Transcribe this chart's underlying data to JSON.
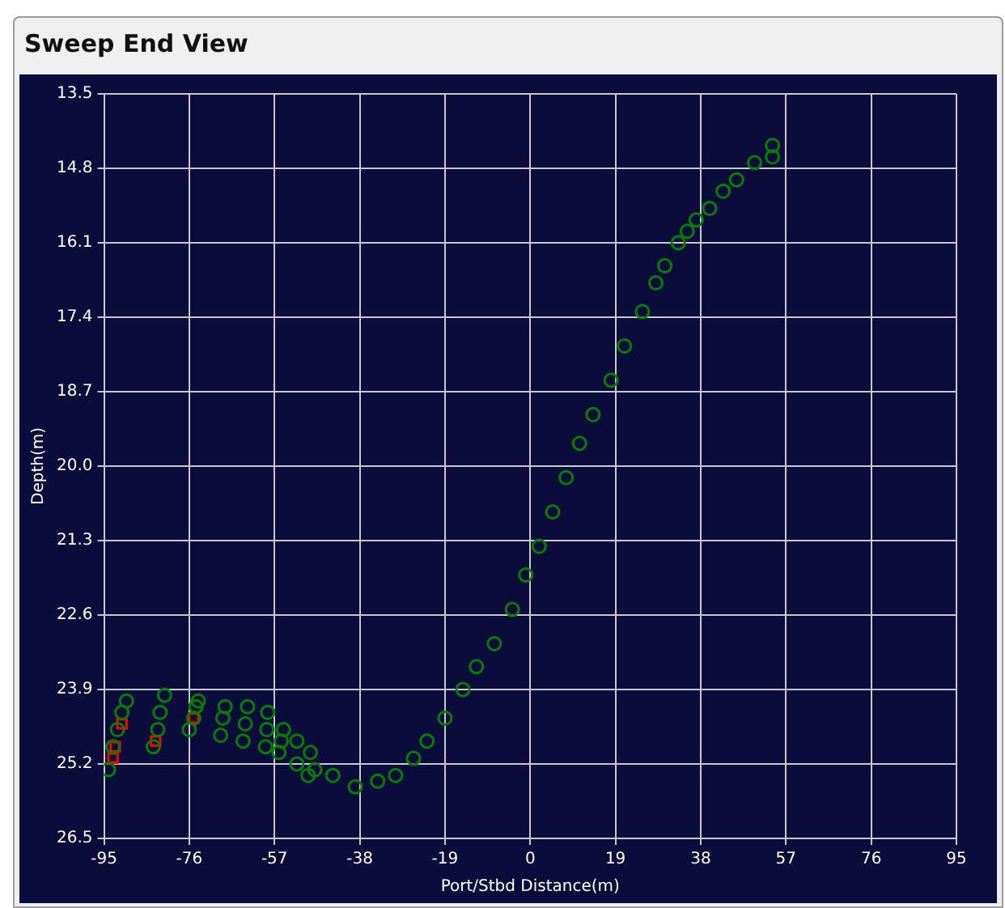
{
  "chart_data": {
    "type": "scatter",
    "title": "Sweep End View",
    "xlabel": "Port/Stbd Distance(m)",
    "ylabel": "Depth(m)",
    "xlim": [
      -95,
      95
    ],
    "xticks": [
      -95,
      -76,
      -57,
      -38,
      -19,
      0,
      19,
      38,
      57,
      76,
      95
    ],
    "ylim": [
      26.5,
      13.5
    ],
    "yticks": [
      13.5,
      14.8,
      16.1,
      17.4,
      18.7,
      {
        "value": 20,
        "label": "20.0"
      },
      21.3,
      22.6,
      23.9,
      25.2,
      26.5
    ],
    "grid": true,
    "legend": false,
    "series": [
      {
        "color": "#008000",
        "marker": "circle",
        "x": [
          -94,
          -93,
          -92,
          -91,
          -90,
          -84,
          -83,
          -82.5,
          -81.5,
          -76,
          -75,
          -74.5,
          -74,
          -69,
          -68.5,
          -68,
          -64,
          -63.5,
          -63,
          -59,
          -58.7,
          -58.5,
          -56,
          -55.5,
          -55,
          -52,
          -52,
          -49.5,
          -49,
          -48,
          -44,
          -39,
          -34,
          -30,
          -26,
          -23,
          -19,
          -15,
          -12,
          -8,
          -4,
          -1,
          2,
          5,
          8,
          11,
          14,
          18,
          21,
          25,
          28,
          30,
          33,
          35,
          37,
          40,
          43,
          46,
          50,
          54,
          54
        ],
        "values": [
          25.3,
          24.9,
          24.6,
          24.3,
          24.1,
          24.9,
          24.6,
          24.3,
          24.0,
          24.6,
          24.4,
          24.2,
          24.1,
          24.7,
          24.4,
          24.2,
          24.8,
          24.5,
          24.2,
          24.9,
          24.6,
          24.3,
          25.0,
          24.8,
          24.6,
          25.2,
          24.8,
          25.4,
          25.0,
          25.3,
          25.4,
          25.6,
          25.5,
          25.4,
          25.1,
          24.8,
          24.4,
          23.9,
          23.5,
          23.1,
          22.5,
          21.9,
          21.4,
          20.8,
          20.2,
          19.6,
          19.1,
          18.5,
          17.9,
          17.3,
          16.8,
          16.5,
          16.1,
          15.9,
          15.7,
          15.5,
          15.2,
          15.0,
          14.7,
          14.6,
          14.4
        ]
      },
      {
        "color": "#ff0000",
        "marker": "square",
        "x": [
          -93,
          -92.5,
          -91,
          -83.5,
          -75
        ],
        "values": [
          25.1,
          24.9,
          24.5,
          24.8,
          24.4
        ]
      }
    ]
  }
}
